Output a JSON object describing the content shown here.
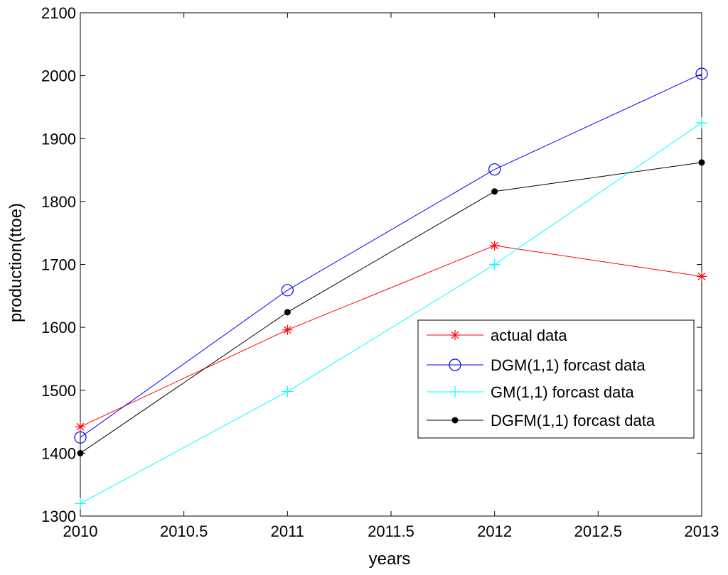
{
  "chart_data": {
    "type": "line",
    "title": "",
    "xlabel": "years",
    "ylabel": "production(ttoe)",
    "xlim": [
      2010,
      2013
    ],
    "ylim": [
      1300,
      2100
    ],
    "xticks": [
      2010,
      2010.5,
      2011,
      2011.5,
      2012,
      2012.5,
      2013
    ],
    "xtick_labels": [
      "2010",
      "2010.5",
      "2011",
      "2011.5",
      "2012",
      "2012.5",
      "2013"
    ],
    "yticks": [
      1300,
      1400,
      1500,
      1600,
      1700,
      1800,
      1900,
      2000,
      2100
    ],
    "ytick_labels": [
      "1300",
      "1400",
      "1500",
      "1600",
      "1700",
      "1800",
      "1900",
      "2000",
      "2100"
    ],
    "grid": false,
    "legend_position": "lower-right",
    "x": [
      2010,
      2011,
      2012,
      2013
    ],
    "series": [
      {
        "name": "actual data",
        "color": "#ff0000",
        "marker": "star",
        "values": [
          1442,
          1596,
          1730,
          1681
        ]
      },
      {
        "name": "DGM(1,1) forcast data",
        "color": "#0000ff",
        "marker": "circle",
        "values": [
          1425,
          1659,
          1851,
          2003
        ]
      },
      {
        "name": "GM(1,1) forcast data",
        "color": "#00ffff",
        "marker": "plus",
        "values": [
          1320,
          1498,
          1700,
          1925
        ]
      },
      {
        "name": "DGFM(1,1) forcast data",
        "color": "#000000",
        "marker": "dot",
        "values": [
          1400,
          1624,
          1816,
          1862
        ]
      }
    ]
  }
}
